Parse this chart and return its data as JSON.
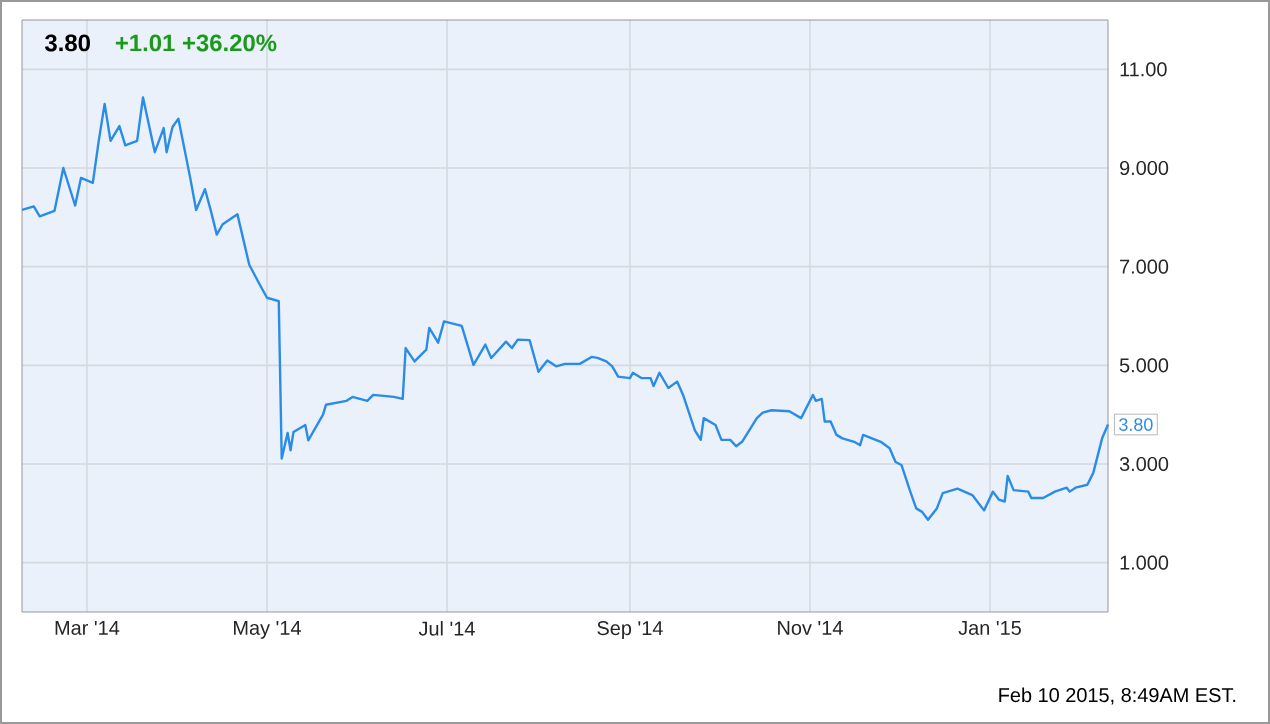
{
  "chart_data": {
    "type": "line",
    "title": "3.80",
    "subtitle": "+1.01  +36.20%",
    "x": [
      "2014-02-07",
      "2014-02-11",
      "2014-02-13",
      "2014-02-18",
      "2014-02-21",
      "2014-02-25",
      "2014-02-27",
      "2014-03-03",
      "2014-03-05",
      "2014-03-07",
      "2014-03-09",
      "2014-03-12",
      "2014-03-14",
      "2014-03-18",
      "2014-03-20",
      "2014-03-24",
      "2014-03-27",
      "2014-03-28",
      "2014-03-30",
      "2014-04-01",
      "2014-04-05",
      "2014-04-07",
      "2014-04-10",
      "2014-04-12",
      "2014-04-14",
      "2014-04-16",
      "2014-04-21",
      "2014-04-25",
      "2014-04-28",
      "2014-05-01",
      "2014-05-05",
      "2014-05-06",
      "2014-05-08",
      "2014-05-09",
      "2014-05-10",
      "2014-05-14",
      "2014-05-15",
      "2014-05-20",
      "2014-05-21",
      "2014-05-28",
      "2014-05-30",
      "2014-06-04",
      "2014-06-06",
      "2014-06-13",
      "2014-06-16",
      "2014-06-17",
      "2014-06-20",
      "2014-06-24",
      "2014-06-25",
      "2014-06-28",
      "2014-06-30",
      "2014-07-06",
      "2014-07-10",
      "2014-07-14",
      "2014-07-16",
      "2014-07-21",
      "2014-07-23",
      "2014-07-25",
      "2014-07-29",
      "2014-08-01",
      "2014-08-04",
      "2014-08-07",
      "2014-08-10",
      "2014-08-15",
      "2014-08-19",
      "2014-08-21",
      "2014-08-24",
      "2014-08-26",
      "2014-08-28",
      "2014-09-01",
      "2014-09-02",
      "2014-09-05",
      "2014-09-08",
      "2014-09-09",
      "2014-09-11",
      "2014-09-14",
      "2014-09-17",
      "2014-09-19",
      "2014-09-23",
      "2014-09-25",
      "2014-09-26",
      "2014-09-30",
      "2014-10-02",
      "2014-10-05",
      "2014-10-07",
      "2014-10-09",
      "2014-10-14",
      "2014-10-16",
      "2014-10-19",
      "2014-10-25",
      "2014-10-29",
      "2014-11-02",
      "2014-11-03",
      "2014-11-05",
      "2014-11-06",
      "2014-11-08",
      "2014-11-10",
      "2014-11-12",
      "2014-11-16",
      "2014-11-18",
      "2014-11-19",
      "2014-11-25",
      "2014-11-28",
      "2014-11-30",
      "2014-12-02",
      "2014-12-05",
      "2014-12-07",
      "2014-12-09",
      "2014-12-11",
      "2014-12-14",
      "2014-12-16",
      "2014-12-21",
      "2014-12-26",
      "2014-12-30",
      "2015-01-02",
      "2015-01-04",
      "2015-01-06",
      "2015-01-07",
      "2015-01-09",
      "2015-01-14",
      "2015-01-15",
      "2015-01-19",
      "2015-01-23",
      "2015-01-27",
      "2015-01-28",
      "2015-01-30",
      "2015-02-03",
      "2015-02-05",
      "2015-02-08",
      "2015-02-10"
    ],
    "series": [
      {
        "color": "#2b8ce6",
        "values": [
          8.15,
          8.22,
          8.02,
          8.13,
          9.0,
          8.24,
          8.8,
          8.7,
          9.55,
          10.3,
          9.55,
          9.85,
          9.46,
          9.55,
          10.43,
          9.32,
          9.81,
          9.32,
          9.83,
          10.0,
          8.8,
          8.15,
          8.57,
          8.13,
          7.65,
          7.86,
          8.06,
          7.04,
          6.7,
          6.37,
          6.3,
          3.11,
          3.63,
          3.28,
          3.65,
          3.79,
          3.48,
          4.0,
          4.2,
          4.28,
          4.36,
          4.28,
          4.4,
          4.36,
          4.32,
          5.35,
          5.08,
          5.32,
          5.76,
          5.46,
          5.89,
          5.8,
          5.01,
          5.42,
          5.15,
          5.48,
          5.35,
          5.52,
          5.51,
          4.87,
          5.1,
          4.98,
          5.03,
          5.03,
          5.17,
          5.15,
          5.08,
          4.98,
          4.77,
          4.74,
          4.85,
          4.74,
          4.74,
          4.58,
          4.85,
          4.54,
          4.67,
          4.4,
          3.68,
          3.49,
          3.93,
          3.79,
          3.49,
          3.49,
          3.36,
          3.45,
          3.93,
          4.04,
          4.09,
          4.07,
          3.93,
          4.4,
          4.28,
          4.32,
          3.86,
          3.86,
          3.59,
          3.52,
          3.45,
          3.38,
          3.59,
          3.45,
          3.32,
          3.04,
          2.98,
          2.44,
          2.1,
          2.03,
          1.87,
          2.1,
          2.41,
          2.5,
          2.37,
          2.06,
          2.44,
          2.28,
          2.24,
          2.76,
          2.47,
          2.44,
          2.31,
          2.31,
          2.44,
          2.52,
          2.44,
          2.52,
          2.58,
          2.82,
          3.52,
          3.8
        ]
      }
    ],
    "xlim": [
      "2014-02-07",
      "2015-02-10"
    ],
    "xticks": [
      {
        "value": "2014-03-01",
        "label": "Mar '14"
      },
      {
        "value": "2014-05-01",
        "label": "May '14"
      },
      {
        "value": "2014-07-01",
        "label": "Jul '14"
      },
      {
        "value": "2014-09-01",
        "label": "Sep '14"
      },
      {
        "value": "2014-11-01",
        "label": "Nov '14"
      },
      {
        "value": "2015-01-01",
        "label": "Jan '15"
      }
    ],
    "ylim": [
      0,
      12
    ],
    "yticks": [
      {
        "value": 1,
        "label": "1.000"
      },
      {
        "value": 3,
        "label": "3.000"
      },
      {
        "value": 5,
        "label": "5.000"
      },
      {
        "value": 7,
        "label": "7.000"
      },
      {
        "value": 9,
        "label": "9.000"
      },
      {
        "value": 11,
        "label": "11.00"
      }
    ],
    "grid": true,
    "annotations": [
      {
        "text": "3.80",
        "x": "2015-02-10",
        "y": 3.8
      },
      "Feb 10 2015, 8:49AM EST."
    ]
  }
}
